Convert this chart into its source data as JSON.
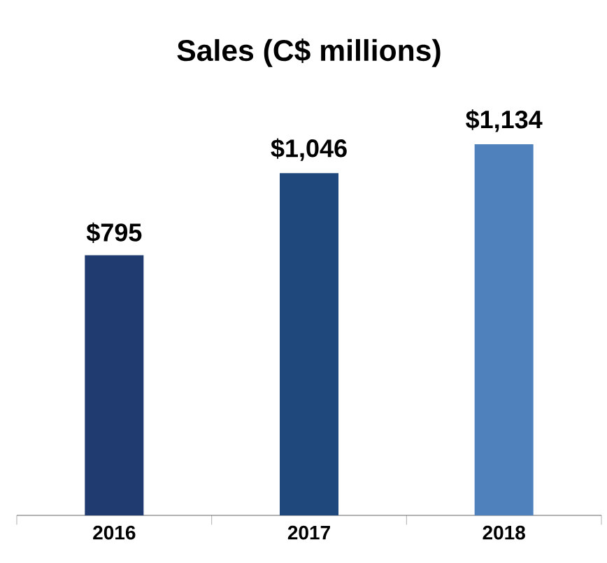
{
  "chart_data": {
    "type": "bar",
    "title": "Sales (C$ millions)",
    "categories": [
      "2016",
      "2017",
      "2018"
    ],
    "values": [
      795,
      1046,
      1134
    ],
    "value_labels": [
      "$795",
      "$1,046",
      "$1,134"
    ],
    "colors": [
      "#1f3b6f",
      "#1f497d",
      "#4f81bd"
    ]
  }
}
